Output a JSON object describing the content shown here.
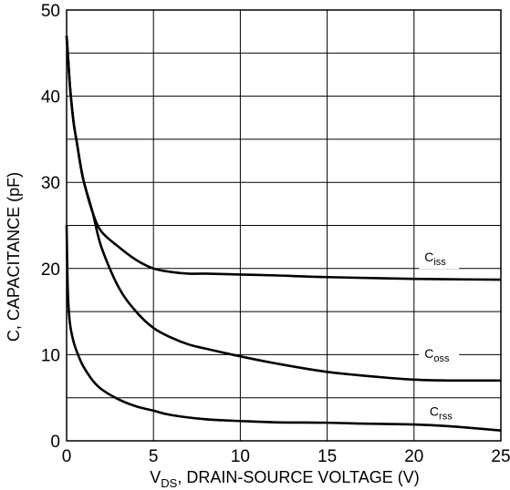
{
  "chart_data": {
    "type": "line",
    "title": "",
    "xlabel": {
      "main": "V",
      "subscript": "DS",
      "rest": ", DRAIN-SOURCE VOLTAGE (V)"
    },
    "ylabel": "C, CAPACITANCE (pF)",
    "xlim": [
      0,
      25
    ],
    "ylim": [
      0,
      50
    ],
    "x_ticks": [
      "0",
      "5",
      "10",
      "15",
      "20",
      "25"
    ],
    "y_ticks": [
      "0",
      "10",
      "20",
      "30",
      "40",
      "50"
    ],
    "grid": true,
    "series": [
      {
        "name": "Ciss",
        "label_main": "C",
        "label_sub": "iss",
        "x": [
          0,
          0.1,
          0.2,
          0.4,
          0.6,
          0.8,
          1.0,
          1.5,
          2,
          3,
          4,
          5,
          6,
          7,
          8,
          10,
          12,
          15,
          20,
          25
        ],
        "y": [
          47,
          44,
          41,
          37,
          34.5,
          32,
          30,
          26.5,
          24.3,
          22.5,
          21,
          20,
          19.6,
          19.4,
          19.4,
          19.3,
          19.2,
          19.0,
          18.8,
          18.7
        ]
      },
      {
        "name": "Coss",
        "label_main": "C",
        "label_sub": "oss",
        "x": [
          0,
          0.1,
          0.2,
          0.4,
          0.6,
          0.8,
          1.0,
          1.5,
          2,
          3,
          4,
          5,
          6,
          7,
          8,
          10,
          12,
          15,
          18,
          20,
          22,
          25
        ],
        "y": [
          47,
          44,
          41,
          37,
          34.5,
          32,
          30,
          26.5,
          22.5,
          17.8,
          15,
          13.1,
          12,
          11.2,
          10.7,
          9.8,
          9.0,
          8.0,
          7.4,
          7.1,
          7.0,
          7.0
        ]
      },
      {
        "name": "Crss",
        "label_main": "C",
        "label_sub": "rss",
        "x": [
          0,
          0.05,
          0.1,
          0.2,
          0.4,
          0.6,
          0.8,
          1.0,
          1.5,
          2,
          3,
          4,
          5,
          6,
          8,
          10,
          12,
          15,
          17,
          20,
          22,
          25
        ],
        "y": [
          25,
          19,
          16,
          13.5,
          11.5,
          10.3,
          9.3,
          8.5,
          7.0,
          6.0,
          4.8,
          4.0,
          3.5,
          3.0,
          2.5,
          2.3,
          2.15,
          2.1,
          2.0,
          1.9,
          1.7,
          1.2
        ]
      }
    ],
    "label_positions_data": [
      {
        "x": 20.6,
        "y": 20.8
      },
      {
        "x": 20.6,
        "y": 9.6
      },
      {
        "x": 20.9,
        "y": 2.9
      }
    ]
  }
}
